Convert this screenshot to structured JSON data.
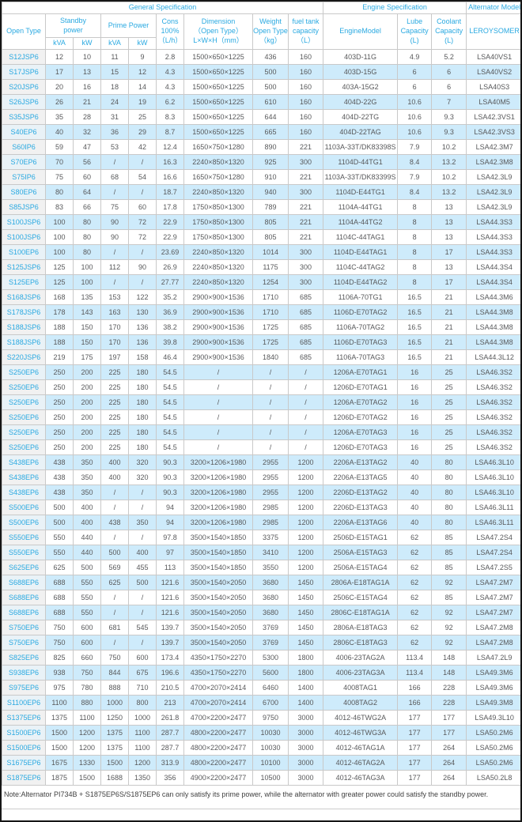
{
  "colors": {
    "accent": "#2aa9e1",
    "stripe": "#ceebfb",
    "model_column_bg": "#f1f1f1",
    "border": "#c9c9c9",
    "text": "#58595b"
  },
  "table": {
    "sections": [
      {
        "label": "General Specification"
      },
      {
        "label": "Engine Specification"
      },
      {
        "label": "Alternator Model"
      }
    ],
    "headers": {
      "open_type": "Open Type",
      "standby": "Standby\npower",
      "prime": "Prime Power",
      "kva": "kVA",
      "kw": "kW",
      "cons": "Cons\n100%\n（L/h）",
      "dimension": "Dimension\n（Open Type）\nL×W×H（mm）",
      "weight": "Weight\nOpen Type\n（kg）",
      "fuel": "fuel tank\ncapacity\n（L）",
      "engine": "EngineModel",
      "lube": "Lube\nCapacity\n(L)",
      "coolant": "Coolant\nCapacity\n(L)",
      "alternator": "LEROYSOMER"
    },
    "rows": [
      [
        "S12JSP6",
        "12",
        "10",
        "11",
        "9",
        "2.8",
        "1500×650×1225",
        "436",
        "160",
        "403D-11G",
        "4.9",
        "5.2",
        "LSA40VS1"
      ],
      [
        "S17JSP6",
        "17",
        "13",
        "15",
        "12",
        "4.3",
        "1500×650×1225",
        "500",
        "160",
        "403D-15G",
        "6",
        "6",
        "LSA40VS2"
      ],
      [
        "S20JSP6",
        "20",
        "16",
        "18",
        "14",
        "4.3",
        "1500×650×1225",
        "500",
        "160",
        "403A-15G2",
        "6",
        "6",
        "LSA40S3"
      ],
      [
        "S26JSP6",
        "26",
        "21",
        "24",
        "19",
        "6.2",
        "1500×650×1225",
        "610",
        "160",
        "404D-22G",
        "10.6",
        "7",
        "LSA40M5"
      ],
      [
        "S35JSP6",
        "35",
        "28",
        "31",
        "25",
        "8.3",
        "1500×650×1225",
        "644",
        "160",
        "404D-22TG",
        "10.6",
        "9.3",
        "LSA42.3VS1"
      ],
      [
        "S40EP6",
        "40",
        "32",
        "36",
        "29",
        "8.7",
        "1500×650×1225",
        "665",
        "160",
        "404D-22TAG",
        "10.6",
        "9.3",
        "LSA42.3VS3"
      ],
      [
        "S60IP6",
        "59",
        "47",
        "53",
        "42",
        "12.4",
        "1650×750×1280",
        "890",
        "221",
        "1103A-33T/DK83398S",
        "7.9",
        "10.2",
        "LSA42.3M7"
      ],
      [
        "S70EP6",
        "70",
        "56",
        "/",
        "/",
        "16.3",
        "2240×850×1320",
        "925",
        "300",
        "1104D-44TG1",
        "8.4",
        "13.2",
        "LSA42.3M8"
      ],
      [
        "S75IP6",
        "75",
        "60",
        "68",
        "54",
        "16.6",
        "1650×750×1280",
        "910",
        "221",
        "1103A-33T/DK83399S",
        "7.9",
        "10.2",
        "LSA42.3L9"
      ],
      [
        "S80EP6",
        "80",
        "64",
        "/",
        "/",
        "18.7",
        "2240×850×1320",
        "940",
        "300",
        "1104D-E44TG1",
        "8.4",
        "13.2",
        "LSA42.3L9"
      ],
      [
        "S85JSP6",
        "83",
        "66",
        "75",
        "60",
        "17.8",
        "1750×850×1300",
        "789",
        "221",
        "1104A-44TG1",
        "8",
        "13",
        "LSA42.3L9"
      ],
      [
        "S100JSP6",
        "100",
        "80",
        "90",
        "72",
        "22.9",
        "1750×850×1300",
        "805",
        "221",
        "1104A-44TG2",
        "8",
        "13",
        "LSA44.3S3"
      ],
      [
        "S100JSP6",
        "100",
        "80",
        "90",
        "72",
        "22.9",
        "1750×850×1300",
        "805",
        "221",
        "1104C-44TAG1",
        "8",
        "13",
        "LSA44.3S3"
      ],
      [
        "S100EP6",
        "100",
        "80",
        "/",
        "/",
        "23.69",
        "2240×850×1320",
        "1014",
        "300",
        "1104D-E44TAG1",
        "8",
        "17",
        "LSA44.3S3"
      ],
      [
        "S125JSP6",
        "125",
        "100",
        "112",
        "90",
        "26.9",
        "2240×850×1320",
        "1175",
        "300",
        "1104C-44TAG2",
        "8",
        "13",
        "LSA44.3S4"
      ],
      [
        "S125EP6",
        "125",
        "100",
        "/",
        "/",
        "27.77",
        "2240×850×1320",
        "1254",
        "300",
        "1104D-E44TAG2",
        "8",
        "17",
        "LSA44.3S4"
      ],
      [
        "S168JSP6",
        "168",
        "135",
        "153",
        "122",
        "35.2",
        "2900×900×1536",
        "1710",
        "685",
        "1106A-70TG1",
        "16.5",
        "21",
        "LSA44.3M6"
      ],
      [
        "S178JSP6",
        "178",
        "143",
        "163",
        "130",
        "36.9",
        "2900×900×1536",
        "1710",
        "685",
        "1106D-E70TAG2",
        "16.5",
        "21",
        "LSA44.3M8"
      ],
      [
        "S188JSP6",
        "188",
        "150",
        "170",
        "136",
        "38.2",
        "2900×900×1536",
        "1725",
        "685",
        "1106A-70TAG2",
        "16.5",
        "21",
        "LSA44.3M8"
      ],
      [
        "S188JSP6",
        "188",
        "150",
        "170",
        "136",
        "39.8",
        "2900×900×1536",
        "1725",
        "685",
        "1106D-E70TAG3",
        "16.5",
        "21",
        "LSA44.3M8"
      ],
      [
        "S220JSP6",
        "219",
        "175",
        "197",
        "158",
        "46.4",
        "2900×900×1536",
        "1840",
        "685",
        "1106A-70TAG3",
        "16.5",
        "21",
        "LSA44.3L12"
      ],
      [
        "S250EP6",
        "250",
        "200",
        "225",
        "180",
        "54.5",
        "/",
        "/",
        "/",
        "1206A-E70TAG1",
        "16",
        "25",
        "LSA46.3S2"
      ],
      [
        "S250EP6",
        "250",
        "200",
        "225",
        "180",
        "54.5",
        "/",
        "/",
        "/",
        "1206D-E70TAG1",
        "16",
        "25",
        "LSA46.3S2"
      ],
      [
        "S250EP6",
        "250",
        "200",
        "225",
        "180",
        "54.5",
        "/",
        "/",
        "/",
        "1206A-E70TAG2",
        "16",
        "25",
        "LSA46.3S2"
      ],
      [
        "S250EP6",
        "250",
        "200",
        "225",
        "180",
        "54.5",
        "/",
        "/",
        "/",
        "1206D-E70TAG2",
        "16",
        "25",
        "LSA46.3S2"
      ],
      [
        "S250EP6",
        "250",
        "200",
        "225",
        "180",
        "54.5",
        "/",
        "/",
        "/",
        "1206A-E70TAG3",
        "16",
        "25",
        "LSA46.3S2"
      ],
      [
        "S250EP6",
        "250",
        "200",
        "225",
        "180",
        "54.5",
        "/",
        "/",
        "/",
        "1206D-E70TAG3",
        "16",
        "25",
        "LSA46.3S2"
      ],
      [
        "S438EP6",
        "438",
        "350",
        "400",
        "320",
        "90.3",
        "3200×1206×1980",
        "2955",
        "1200",
        "2206A-E13TAG2",
        "40",
        "80",
        "LSA46.3L10"
      ],
      [
        "S438EP6",
        "438",
        "350",
        "400",
        "320",
        "90.3",
        "3200×1206×1980",
        "2955",
        "1200",
        "2206A-E13TAG5",
        "40",
        "80",
        "LSA46.3L10"
      ],
      [
        "S438EP6",
        "438",
        "350",
        "/",
        "/",
        "90.3",
        "3200×1206×1980",
        "2955",
        "1200",
        "2206D-E13TAG2",
        "40",
        "80",
        "LSA46.3L10"
      ],
      [
        "S500EP6",
        "500",
        "400",
        "/",
        "/",
        "94",
        "3200×1206×1980",
        "2985",
        "1200",
        "2206D-E13TAG3",
        "40",
        "80",
        "LSA46.3L11"
      ],
      [
        "S500EP6",
        "500",
        "400",
        "438",
        "350",
        "94",
        "3200×1206×1980",
        "2985",
        "1200",
        "2206A-E13TAG6",
        "40",
        "80",
        "LSA46.3L11"
      ],
      [
        "S550EP6",
        "550",
        "440",
        "/",
        "/",
        "97.8",
        "3500×1540×1850",
        "3375",
        "1200",
        "2506D-E15TAG1",
        "62",
        "85",
        "LSA47.2S4"
      ],
      [
        "S550EP6",
        "550",
        "440",
        "500",
        "400",
        "97",
        "3500×1540×1850",
        "3410",
        "1200",
        "2506A-E15TAG3",
        "62",
        "85",
        "LSA47.2S4"
      ],
      [
        "S625EP6",
        "625",
        "500",
        "569",
        "455",
        "113",
        "3500×1540×1850",
        "3550",
        "1200",
        "2506A-E15TAG4",
        "62",
        "85",
        "LSA47.2S5"
      ],
      [
        "S688EP6",
        "688",
        "550",
        "625",
        "500",
        "121.6",
        "3500×1540×2050",
        "3680",
        "1450",
        "2806A-E18TAG1A",
        "62",
        "92",
        "LSA47.2M7"
      ],
      [
        "S688EP6",
        "688",
        "550",
        "/",
        "/",
        "121.6",
        "3500×1540×2050",
        "3680",
        "1450",
        "2506C-E15TAG4",
        "62",
        "85",
        "LSA47.2M7"
      ],
      [
        "S688EP6",
        "688",
        "550",
        "/",
        "/",
        "121.6",
        "3500×1540×2050",
        "3680",
        "1450",
        "2806C-E18TAG1A",
        "62",
        "92",
        "LSA47.2M7"
      ],
      [
        "S750EP6",
        "750",
        "600",
        "681",
        "545",
        "139.7",
        "3500×1540×2050",
        "3769",
        "1450",
        "2806A-E18TAG3",
        "62",
        "92",
        "LSA47.2M8"
      ],
      [
        "S750EP6",
        "750",
        "600",
        "/",
        "/",
        "139.7",
        "3500×1540×2050",
        "3769",
        "1450",
        "2806C-E18TAG3",
        "62",
        "92",
        "LSA47.2M8"
      ],
      [
        "S825EP6",
        "825",
        "660",
        "750",
        "600",
        "173.4",
        "4350×1750×2270",
        "5300",
        "1800",
        "4006-23TAG2A",
        "113.4",
        "148",
        "LSA47.2L9"
      ],
      [
        "S938EP6",
        "938",
        "750",
        "844",
        "675",
        "196.6",
        "4350×1750×2270",
        "5600",
        "1800",
        "4006-23TAG3A",
        "113.4",
        "148",
        "LSA49.3M6"
      ],
      [
        "S975EP6",
        "975",
        "780",
        "888",
        "710",
        "210.5",
        "4700×2070×2414",
        "6460",
        "1400",
        "4008TAG1",
        "166",
        "228",
        "LSA49.3M6"
      ],
      [
        "S1100EP6",
        "1100",
        "880",
        "1000",
        "800",
        "213",
        "4700×2070×2414",
        "6700",
        "1400",
        "4008TAG2",
        "166",
        "228",
        "LSA49.3M8"
      ],
      [
        "S1375EP6",
        "1375",
        "1100",
        "1250",
        "1000",
        "261.8",
        "4700×2200×2477",
        "9750",
        "3000",
        "4012-46TWG2A",
        "177",
        "177",
        "LSA49.3L10"
      ],
      [
        "S1500EP6",
        "1500",
        "1200",
        "1375",
        "1100",
        "287.7",
        "4800×2200×2477",
        "10030",
        "3000",
        "4012-46TWG3A",
        "177",
        "177",
        "LSA50.2M6"
      ],
      [
        "S1500EP6",
        "1500",
        "1200",
        "1375",
        "1100",
        "287.7",
        "4800×2200×2477",
        "10030",
        "3000",
        "4012-46TAG1A",
        "177",
        "264",
        "LSA50.2M6"
      ],
      [
        "S1675EP6",
        "1675",
        "1330",
        "1500",
        "1200",
        "313.9",
        "4800×2200×2477",
        "10100",
        "3000",
        "4012-46TAG2A",
        "177",
        "264",
        "LSA50.2M6"
      ],
      [
        "S1875EP6",
        "1875",
        "1500",
        "1688",
        "1350",
        "356",
        "4900×2200×2477",
        "10500",
        "3000",
        "4012-46TAG3A",
        "177",
        "264",
        "LSA50.2L8"
      ]
    ]
  },
  "note": "Note:Alternator PI734B + S1875EP6S/S1875EP6 can only satisfy its prime power, while the alternator with greater power could satisfy the standby power."
}
